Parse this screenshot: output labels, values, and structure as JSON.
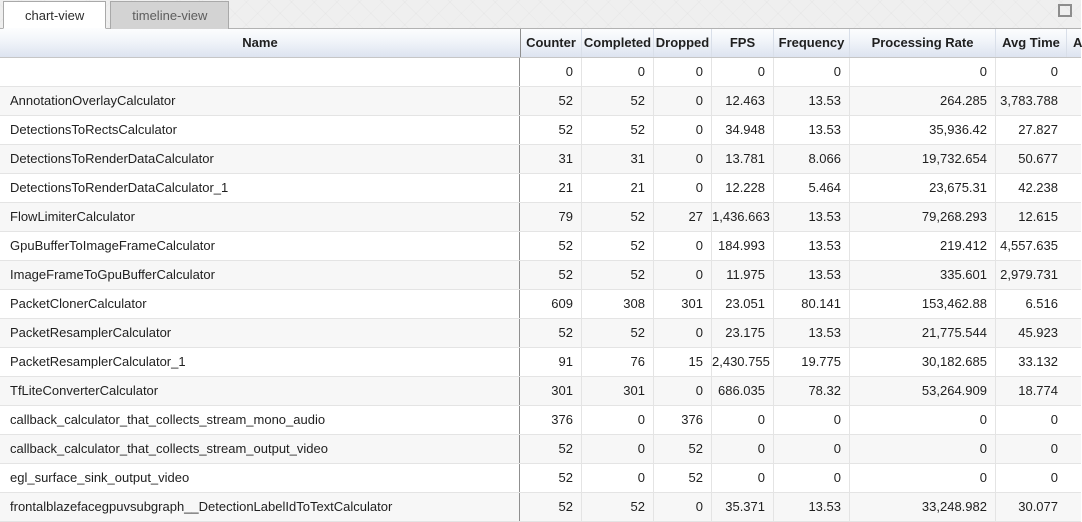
{
  "tabs": [
    {
      "label": "chart-view",
      "active": true
    },
    {
      "label": "timeline-view",
      "active": false
    }
  ],
  "window": {
    "expand_icon": "expand-square-icon"
  },
  "table": {
    "columns": [
      "Name",
      "Counter",
      "Completed",
      "Dropped",
      "FPS",
      "Frequency",
      "Processing Rate",
      "Avg Time",
      "A"
    ],
    "rows": [
      {
        "name": "",
        "values": [
          "0",
          "0",
          "0",
          "0",
          "0",
          "0",
          "0"
        ]
      },
      {
        "name": "AnnotationOverlayCalculator",
        "values": [
          "52",
          "52",
          "0",
          "12.463",
          "13.53",
          "264.285",
          "3,783.788"
        ]
      },
      {
        "name": "DetectionsToRectsCalculator",
        "values": [
          "52",
          "52",
          "0",
          "34.948",
          "13.53",
          "35,936.42",
          "27.827"
        ]
      },
      {
        "name": "DetectionsToRenderDataCalculator",
        "values": [
          "31",
          "31",
          "0",
          "13.781",
          "8.066",
          "19,732.654",
          "50.677"
        ]
      },
      {
        "name": "DetectionsToRenderDataCalculator_1",
        "values": [
          "21",
          "21",
          "0",
          "12.228",
          "5.464",
          "23,675.31",
          "42.238"
        ]
      },
      {
        "name": "FlowLimiterCalculator",
        "values": [
          "79",
          "52",
          "27",
          "1,436.663",
          "13.53",
          "79,268.293",
          "12.615"
        ]
      },
      {
        "name": "GpuBufferToImageFrameCalculator",
        "values": [
          "52",
          "52",
          "0",
          "184.993",
          "13.53",
          "219.412",
          "4,557.635"
        ]
      },
      {
        "name": "ImageFrameToGpuBufferCalculator",
        "values": [
          "52",
          "52",
          "0",
          "11.975",
          "13.53",
          "335.601",
          "2,979.731"
        ]
      },
      {
        "name": "PacketClonerCalculator",
        "values": [
          "609",
          "308",
          "301",
          "23.051",
          "80.141",
          "153,462.88",
          "6.516"
        ]
      },
      {
        "name": "PacketResamplerCalculator",
        "values": [
          "52",
          "52",
          "0",
          "23.175",
          "13.53",
          "21,775.544",
          "45.923"
        ]
      },
      {
        "name": "PacketResamplerCalculator_1",
        "values": [
          "91",
          "76",
          "15",
          "2,430.755",
          "19.775",
          "30,182.685",
          "33.132"
        ]
      },
      {
        "name": "TfLiteConverterCalculator",
        "values": [
          "301",
          "301",
          "0",
          "686.035",
          "78.32",
          "53,264.909",
          "18.774"
        ]
      },
      {
        "name": "callback_calculator_that_collects_stream_mono_audio",
        "values": [
          "376",
          "0",
          "376",
          "0",
          "0",
          "0",
          "0"
        ]
      },
      {
        "name": "callback_calculator_that_collects_stream_output_video",
        "values": [
          "52",
          "0",
          "52",
          "0",
          "0",
          "0",
          "0"
        ]
      },
      {
        "name": "egl_surface_sink_output_video",
        "values": [
          "52",
          "0",
          "52",
          "0",
          "0",
          "0",
          "0"
        ]
      },
      {
        "name": "frontalblazefacegpuvsubgraph__DetectionLabelIdToTextCalculator",
        "values": [
          "52",
          "52",
          "0",
          "35.371",
          "13.53",
          "33,248.982",
          "30.077"
        ]
      }
    ]
  },
  "colors": {
    "header_gradient_top": "#fcfdfe",
    "header_gradient_bottom": "#dde4f0",
    "row_alt_background": "#f7f7f7",
    "name_column_divider": "#8f8f8f",
    "tab_inactive_background": "#d3d3d3",
    "tab_active_background": "#ffffff"
  }
}
